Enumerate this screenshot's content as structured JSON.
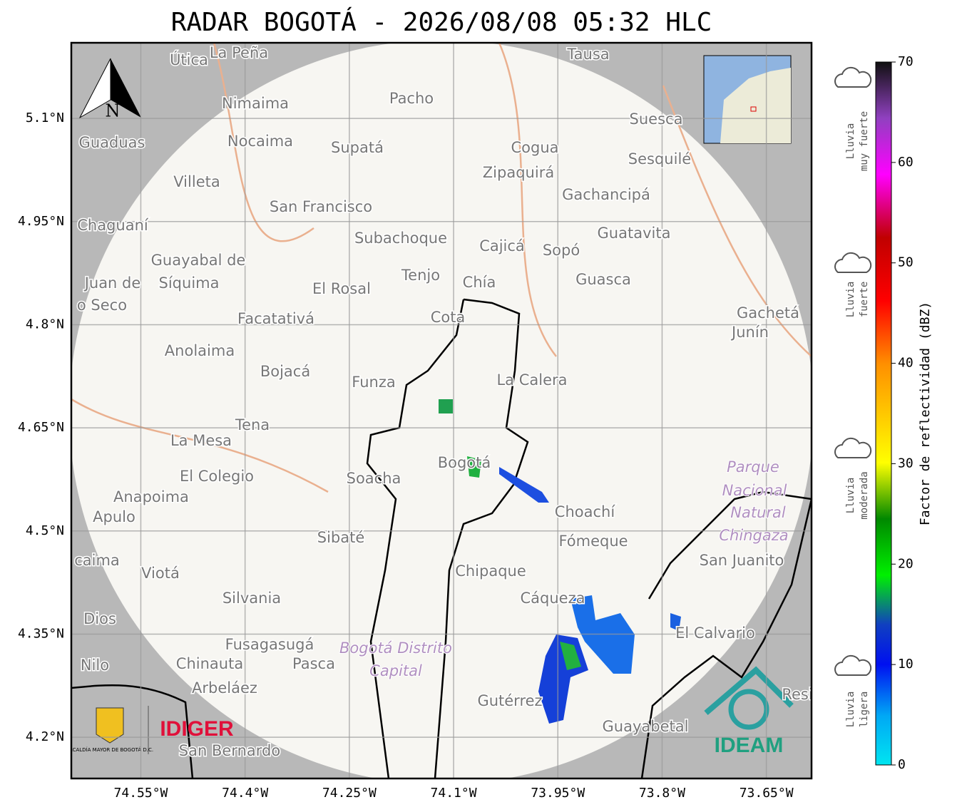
{
  "title": "RADAR BOGOTÁ - 2026/08/08 05:32 HLC",
  "map": {
    "latlim": [
      4.14,
      5.21
    ],
    "lonlim": [
      -74.65,
      -73.585
    ],
    "lat_ticks": [
      {
        "value": 5.1,
        "label": "5.1°N"
      },
      {
        "value": 4.95,
        "label": "4.95°N"
      },
      {
        "value": 4.8,
        "label": "4.8°N"
      },
      {
        "value": 4.65,
        "label": "4.65°N"
      },
      {
        "value": 4.5,
        "label": "4.5°N"
      },
      {
        "value": 4.35,
        "label": "4.35°N"
      },
      {
        "value": 4.2,
        "label": "4.2°N"
      }
    ],
    "lon_ticks": [
      {
        "value": -74.55,
        "label": "74.55°W"
      },
      {
        "value": -74.4,
        "label": "74.4°W"
      },
      {
        "value": -74.25,
        "label": "74.25°W"
      },
      {
        "value": -74.1,
        "label": "74.1°W"
      },
      {
        "value": -73.95,
        "label": "73.95°W"
      },
      {
        "value": -73.8,
        "label": "73.8°W"
      },
      {
        "value": -73.65,
        "label": "73.65°W"
      }
    ],
    "north_label": "N",
    "places": [
      "Útica",
      "La Peña",
      "Tausa",
      "Pacho",
      "Nimaima",
      "Guaduas",
      "Nocaima",
      "Supatá",
      "Cogua",
      "Suesca",
      "Sesquilé",
      "Zipaquirá",
      "Villeta",
      "Gachancipá",
      "San Francisco",
      "Chaguaní",
      "Guatavita",
      "Subachoque",
      "Cajicá",
      "Sopó",
      "Guayabal de",
      "Síquima",
      "Juan de",
      "o Seco",
      "Tenjo",
      "Chía",
      "Guasca",
      "El Rosal",
      "Gachetá",
      "Junín",
      "Facatativá",
      "Cota",
      "Anolaima",
      "Bojacá",
      "Funza",
      "La Calera",
      "Tena",
      "La Mesa",
      "Bogotá",
      "Soacha",
      "El Colegio",
      "Anapoima",
      "Apulo",
      "Choachí",
      "Sibaté",
      "Fómeque",
      "San Juanito",
      "caima",
      "Viotá",
      "Chipaque",
      "Silvania",
      "Cáqueza",
      "Dios",
      "El Calvario",
      "Fusagasugá",
      "Chinauta",
      "Pasca",
      "Nilo",
      "Arbeláez",
      "Gutérrez",
      "Guayabetal",
      "San Bernardo",
      "Resi"
    ],
    "protected_areas": [
      "Parque",
      "Nacional",
      "Natural",
      "Chingaza",
      "Bogotá Distrito",
      "Capital"
    ]
  },
  "logos": {
    "alcaldia": "ALCALDÍA MAYOR DE BOGOTÁ D.C.",
    "idiger": "IDIGER",
    "ideam": "IDEAM"
  },
  "colorbar": {
    "label": "Factor de reflectividad (dBZ)",
    "lim": [
      0,
      70
    ],
    "ticks": [
      0,
      10,
      20,
      30,
      40,
      50,
      60,
      70
    ],
    "categories": [
      {
        "lines": [
          "Lluvia",
          "muy fuerte"
        ]
      },
      {
        "lines": [
          "Lluvia",
          "fuerte"
        ]
      },
      {
        "lines": [
          "Lluvia",
          "moderada"
        ]
      },
      {
        "lines": [
          "Lluvia",
          "ligera"
        ]
      }
    ]
  }
}
